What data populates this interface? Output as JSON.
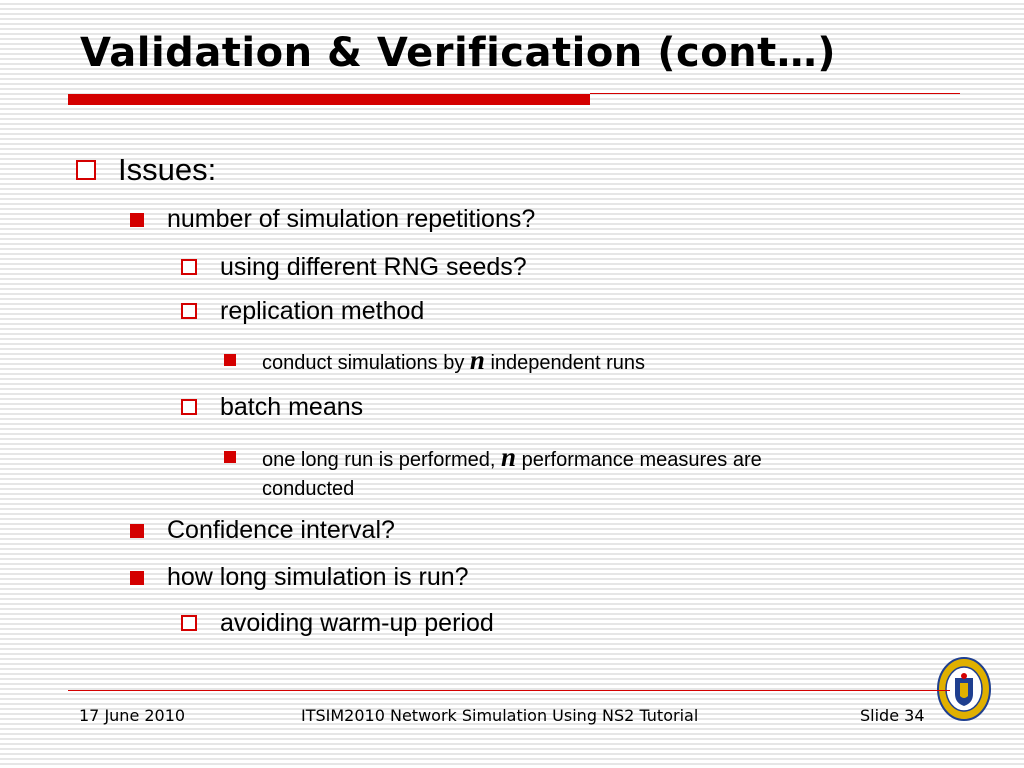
{
  "slide": {
    "title": "Validation & Verification (cont…)"
  },
  "bullets": {
    "issues": "Issues:",
    "repetitions": "number of simulation repetitions?",
    "rng_seeds": "using different RNG seeds?",
    "replication": "replication method",
    "conduct_a": "conduct simulations by",
    "conduct_n": "n",
    "conduct_b": "independent runs",
    "batch": "batch means",
    "long_run_a": "one long run is performed,",
    "long_run_n": "n",
    "long_run_b": "performance measures are",
    "long_run_c": "conducted",
    "confidence": "Confidence interval?",
    "how_long": "how long simulation is run?",
    "warmup": "avoiding warm-up period"
  },
  "footer": {
    "date": "17 June 2010",
    "event": "ITSIM2010 Network Simulation Using NS2 Tutorial",
    "slide": "Slide 34"
  },
  "colors": {
    "accent": "#d40000",
    "logo_gold": "#e0b000",
    "logo_blue": "#1f3f8f"
  },
  "icons": {
    "level1": "hollow-square-bullet",
    "level2": "filled-square-bullet",
    "logo": "university-seal-logo"
  }
}
